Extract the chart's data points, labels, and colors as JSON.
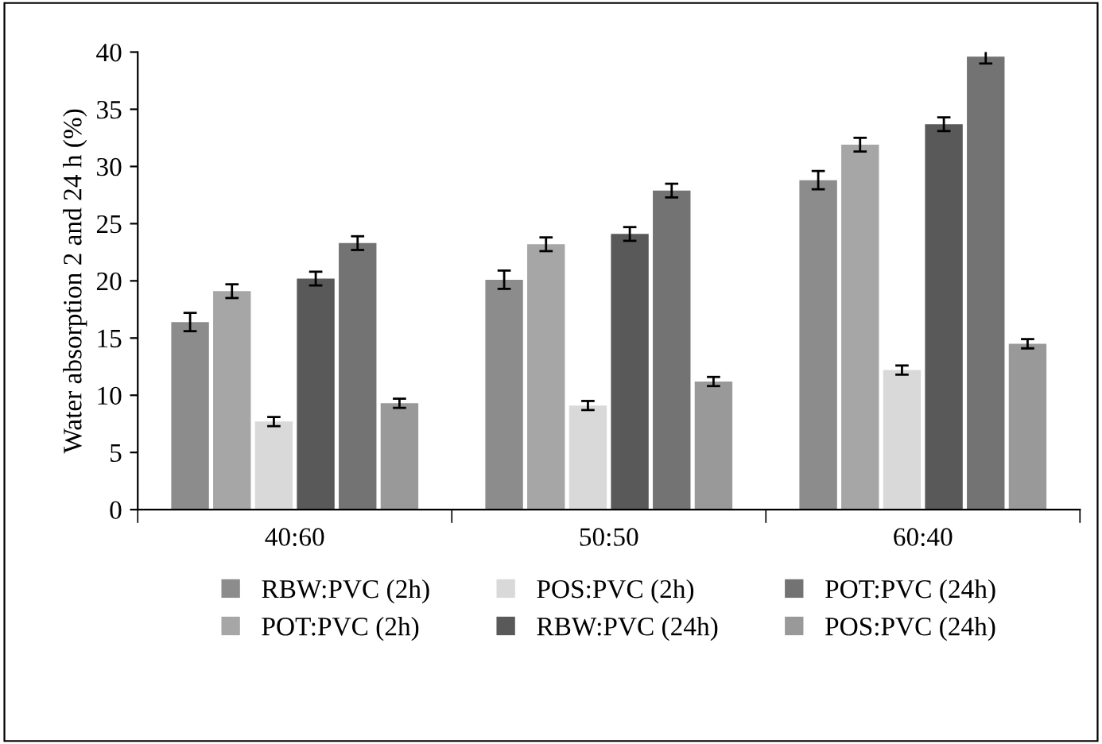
{
  "chart_data": {
    "type": "bar",
    "ylabel": "Water absorption 2 and 24 h (%)",
    "categories": [
      "40:60",
      "50:50",
      "60:40"
    ],
    "series": [
      {
        "name": "RBW:PVC (2h)",
        "color": "#8c8c8c",
        "values": [
          16.4,
          20.1,
          28.8
        ],
        "errors": [
          0.8,
          0.8,
          0.8
        ]
      },
      {
        "name": "POT:PVC (2h)",
        "color": "#a6a6a6",
        "values": [
          19.1,
          23.2,
          31.9
        ],
        "errors": [
          0.6,
          0.6,
          0.6
        ]
      },
      {
        "name": "POS:PVC (2h)",
        "color": "#d9d9d9",
        "values": [
          7.7,
          9.1,
          12.2
        ],
        "errors": [
          0.4,
          0.4,
          0.4
        ]
      },
      {
        "name": "RBW:PVC (24h)",
        "color": "#595959",
        "values": [
          20.2,
          24.1,
          33.7
        ],
        "errors": [
          0.6,
          0.6,
          0.6
        ]
      },
      {
        "name": "POT:PVC (24h)",
        "color": "#737373",
        "values": [
          23.3,
          27.9,
          39.6
        ],
        "errors": [
          0.6,
          0.6,
          0.6
        ]
      },
      {
        "name": "POS:PVC (24h)",
        "color": "#999999",
        "values": [
          9.3,
          11.2,
          14.5
        ],
        "errors": [
          0.4,
          0.4,
          0.4
        ]
      }
    ],
    "ylim": [
      0,
      40
    ],
    "yticks": [
      0,
      5,
      10,
      15,
      20,
      25,
      30,
      35,
      40
    ],
    "grid": false,
    "legend": "bottom"
  }
}
